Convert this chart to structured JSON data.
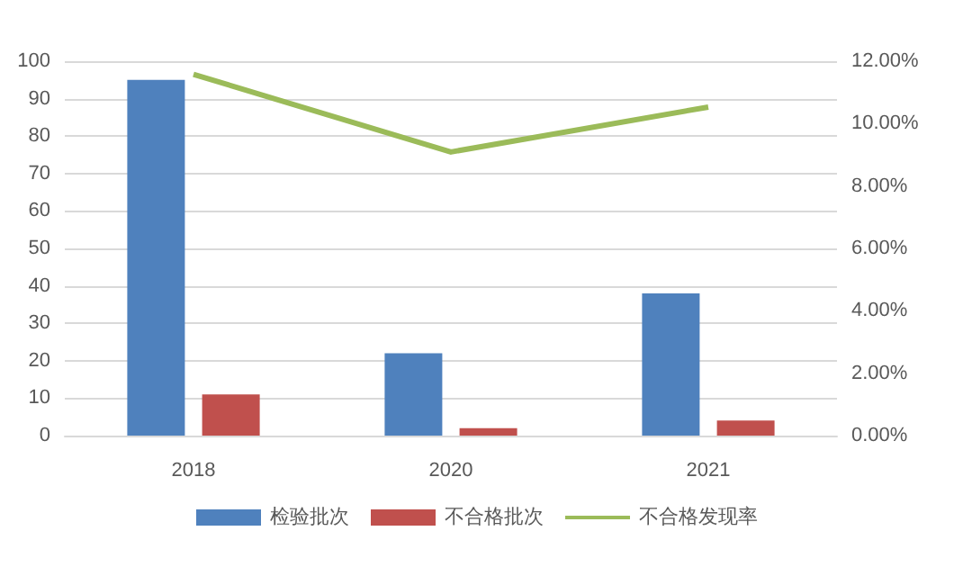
{
  "chart_data": {
    "type": "bar",
    "categories": [
      "2018",
      "2020",
      "2021"
    ],
    "series": [
      {
        "name": "检验批次",
        "color": "#4f81bd",
        "values": [
          95,
          22,
          38
        ]
      },
      {
        "name": "不合格批次",
        "color": "#c0504d",
        "values": [
          11,
          2,
          4
        ]
      },
      {
        "name": "不合格发现率",
        "type": "line",
        "axis": "y2",
        "color": "#9bbb59",
        "values": [
          11.58,
          9.09,
          10.53
        ]
      }
    ],
    "ylim": [
      0,
      100
    ],
    "yticks": [
      0,
      10,
      20,
      30,
      40,
      50,
      60,
      70,
      80,
      90,
      100
    ],
    "y2lim": [
      0,
      12
    ],
    "y2ticks": [
      {
        "value": 0,
        "label": "0.00%"
      },
      {
        "value": 2,
        "label": "2.00%"
      },
      {
        "value": 4,
        "label": "4.00%"
      },
      {
        "value": 6,
        "label": "6.00%"
      },
      {
        "value": 8,
        "label": "8.00%"
      },
      {
        "value": 10,
        "label": "10.00%"
      },
      {
        "value": 12,
        "label": "12.00%"
      }
    ],
    "grid": "y",
    "legend": "bottom",
    "marker": "none"
  }
}
